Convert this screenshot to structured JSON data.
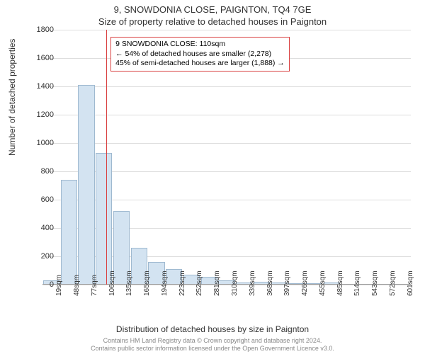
{
  "title_main": "9, SNOWDONIA CLOSE, PAIGNTON, TQ4 7GE",
  "title_sub": "Size of property relative to detached houses in Paignton",
  "ylabel": "Number of detached properties",
  "xlabel": "Distribution of detached houses by size in Paignton",
  "chart": {
    "type": "histogram",
    "ylim": [
      0,
      1800
    ],
    "ytick_step": 200,
    "grid_color": "#dddddd",
    "axis_color": "#999999",
    "bar_fill": "#d3e3f1",
    "bar_border": "#9fb9d0",
    "refline_color": "#d94040",
    "refline_x_value": 110,
    "annotation_border": "#d94040",
    "annotation": {
      "line1": "9 SNOWDONIA CLOSE: 110sqm",
      "line2": "← 54% of detached houses are smaller (2,278)",
      "line3": "45% of semi-detached houses are larger (1,888) →"
    },
    "x_categories": [
      "19sqm",
      "48sqm",
      "77sqm",
      "106sqm",
      "135sqm",
      "165sqm",
      "194sqm",
      "223sqm",
      "252sqm",
      "281sqm",
      "310sqm",
      "339sqm",
      "368sqm",
      "397sqm",
      "426sqm",
      "455sqm",
      "485sqm",
      "514sqm",
      "543sqm",
      "572sqm",
      "601sqm"
    ],
    "values": [
      30,
      740,
      1410,
      930,
      520,
      260,
      160,
      110,
      70,
      55,
      30,
      15,
      20,
      15,
      10,
      10,
      15,
      0,
      0,
      0,
      0
    ]
  },
  "footer_line1": "Contains HM Land Registry data © Crown copyright and database right 2024.",
  "footer_line2": "Contains public sector information licensed under the Open Government Licence v3.0."
}
